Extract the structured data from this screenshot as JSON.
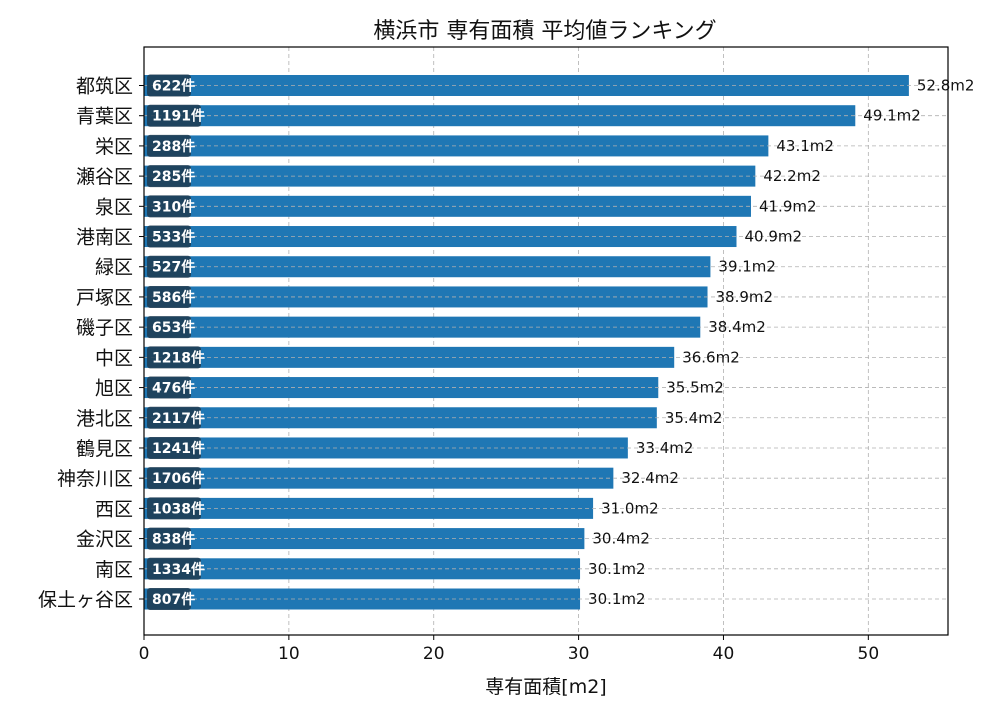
{
  "chart_data": {
    "type": "bar",
    "orientation": "horizontal",
    "title": "横浜市 専有面積 平均値ランキング",
    "xlabel": "専有面積[m2]",
    "ylabel": "",
    "xlim": [
      0,
      55.5
    ],
    "xticks": [
      "0",
      "10",
      "20",
      "30",
      "40",
      "50"
    ],
    "grid": true,
    "bar_color": "#1f77b4",
    "badge_color": "#1f3a4f",
    "categories": [
      "都筑区",
      "青葉区",
      "栄区",
      "瀬谷区",
      "泉区",
      "港南区",
      "緑区",
      "戸塚区",
      "磯子区",
      "中区",
      "旭区",
      "港北区",
      "鶴見区",
      "神奈川区",
      "西区",
      "金沢区",
      "南区",
      "保土ヶ谷区"
    ],
    "values": [
      52.8,
      49.1,
      43.1,
      42.2,
      41.9,
      40.9,
      39.1,
      38.9,
      38.4,
      36.6,
      35.5,
      35.4,
      33.4,
      32.4,
      31.0,
      30.4,
      30.1,
      30.1
    ],
    "value_labels": [
      "52.8m2",
      "49.1m2",
      "43.1m2",
      "42.2m2",
      "41.9m2",
      "40.9m2",
      "39.1m2",
      "38.9m2",
      "38.4m2",
      "36.6m2",
      "35.5m2",
      "35.4m2",
      "33.4m2",
      "32.4m2",
      "31.0m2",
      "30.4m2",
      "30.1m2",
      "30.1m2"
    ],
    "count_labels": [
      "622件",
      "1191件",
      "288件",
      "285件",
      "310件",
      "533件",
      "527件",
      "586件",
      "653件",
      "1218件",
      "476件",
      "2117件",
      "1241件",
      "1706件",
      "1038件",
      "838件",
      "1334件",
      "807件"
    ]
  }
}
